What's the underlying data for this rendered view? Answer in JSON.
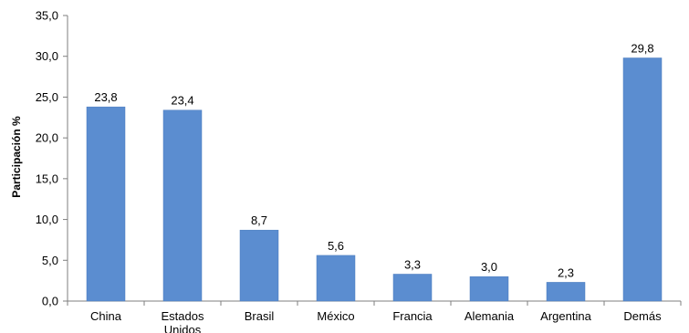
{
  "chart_data": {
    "type": "bar",
    "categories": [
      "China",
      "Estados Unidos",
      "Brasil",
      "México",
      "Francia",
      "Alemania",
      "Argentina",
      "Demás"
    ],
    "category_label_lines": [
      [
        "China"
      ],
      [
        "Estados",
        "Unidos"
      ],
      [
        "Brasil"
      ],
      [
        "México"
      ],
      [
        "Francia"
      ],
      [
        "Alemania"
      ],
      [
        "Argentina"
      ],
      [
        "Demás"
      ]
    ],
    "values": [
      23.8,
      23.4,
      8.7,
      5.6,
      3.3,
      3.0,
      2.3,
      29.8
    ],
    "value_labels": [
      "23,8",
      "23,4",
      "8,7",
      "5,6",
      "3,3",
      "3,0",
      "2,3",
      "29,8"
    ],
    "title": "",
    "xlabel": "",
    "ylabel": "Participación %",
    "ylim": [
      0,
      35
    ],
    "yticks": [
      0,
      5,
      10,
      15,
      20,
      25,
      30,
      35
    ],
    "ytick_labels": [
      "0,0",
      "5,0",
      "10,0",
      "15,0",
      "20,0",
      "25,0",
      "30,0",
      "35,0"
    ],
    "grid": false,
    "legend": "none",
    "bar_color": "#5b8dd0",
    "axis_color": "#7f7f7f"
  }
}
